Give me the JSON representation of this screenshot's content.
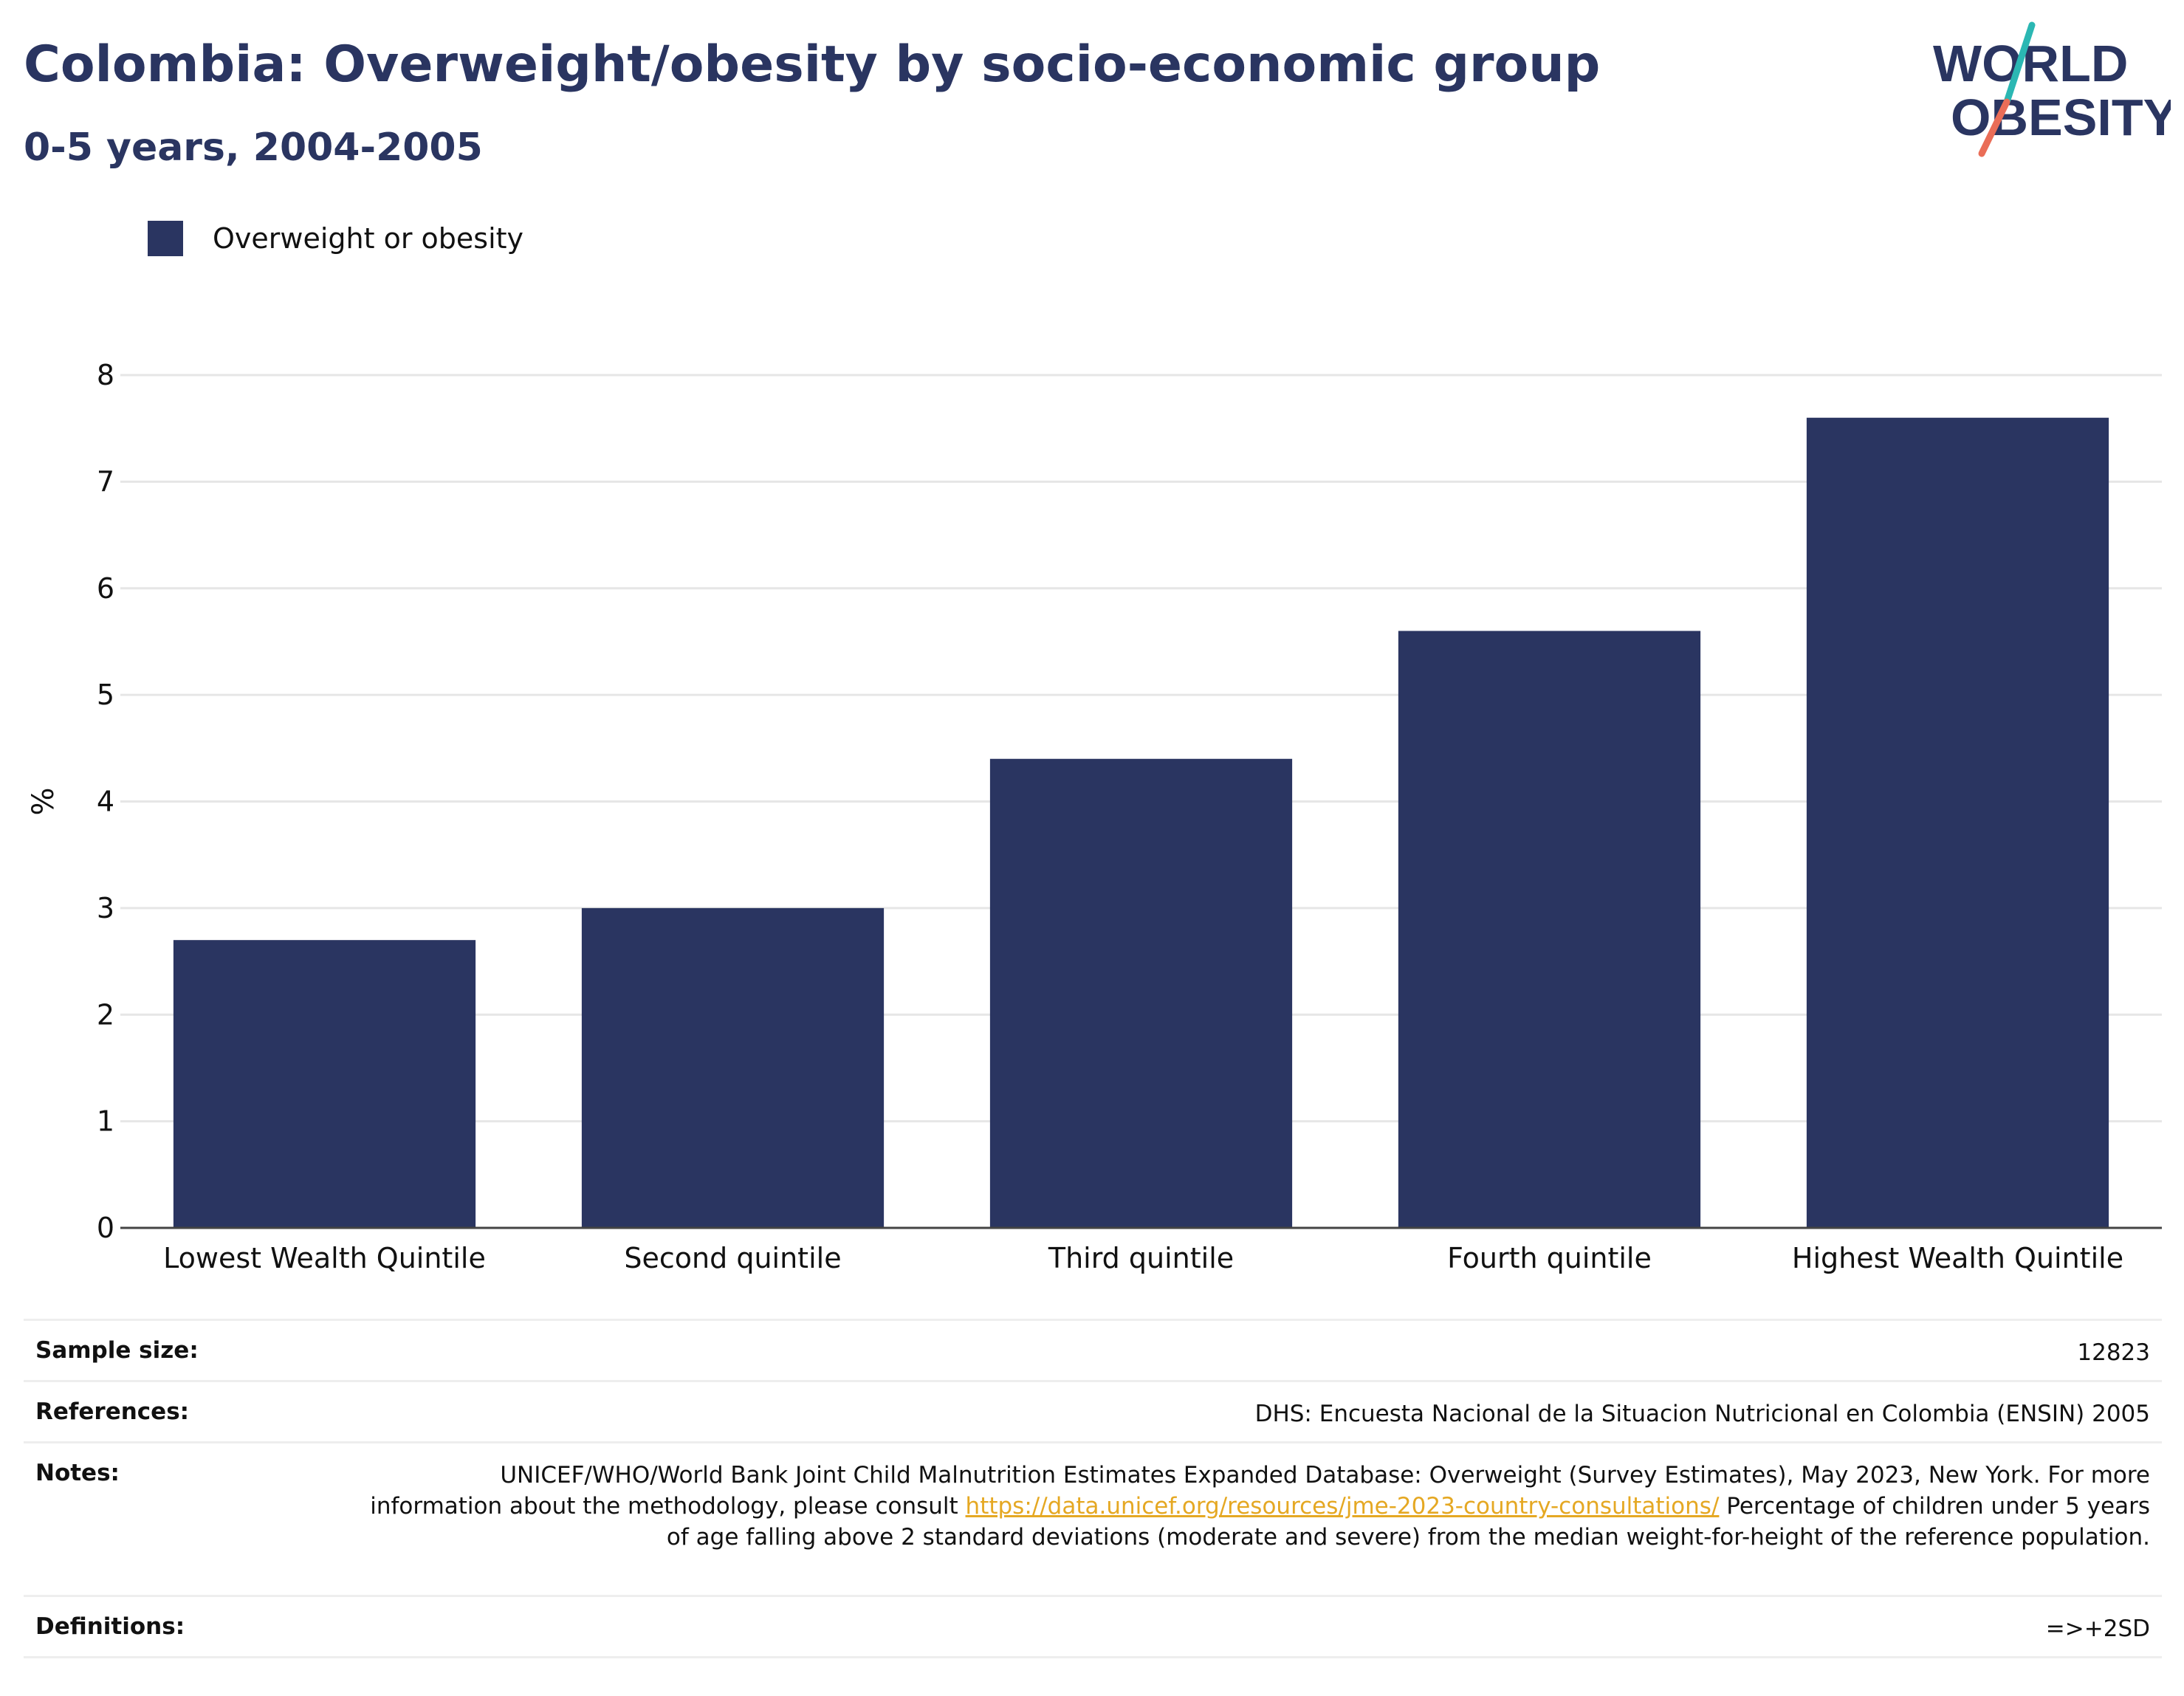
{
  "header": {
    "title": "Colombia: Overweight/obesity by socio-economic group",
    "subtitle": "0-5 years, 2004-2005"
  },
  "logo": {
    "line1": "WORLD",
    "line2": "OBESITY",
    "colors": {
      "text": "#2a3561",
      "slash_top": "#2bb7b3",
      "slash_bottom": "#ea6d57"
    }
  },
  "legend": {
    "label": "Overweight or obesity",
    "color": "#2a3561"
  },
  "chart_data": {
    "type": "bar",
    "categories": [
      "Lowest Wealth Quintile",
      "Second quintile",
      "Third quintile",
      "Fourth quintile",
      "Highest Wealth Quintile"
    ],
    "series": [
      {
        "name": "Overweight or obesity",
        "values": [
          2.7,
          3.0,
          4.4,
          5.6,
          7.6
        ]
      }
    ],
    "title": "Colombia: Overweight/obesity by socio-economic group",
    "subtitle": "0-5 years, 2004-2005",
    "xlabel": "",
    "ylabel": "%",
    "ylim": [
      0,
      8
    ],
    "yticks": [
      "0",
      "1",
      "2",
      "3",
      "4",
      "5",
      "6",
      "7",
      "8"
    ],
    "grid": true,
    "legend_position": "top-left",
    "bar_color": "#2a3561"
  },
  "meta": {
    "sample_size": {
      "label": "Sample size:",
      "value": "12823"
    },
    "references": {
      "label": "References:",
      "value": "DHS: Encuesta Nacional de la Situacion Nutricional en Colombia (ENSIN) 2005"
    },
    "notes": {
      "label": "Notes:",
      "text_before": "UNICEF/WHO/World Bank Joint Child Malnutrition Estimates Expanded Database: Overweight (Survey Estimates), May 2023, New York. For more information about the methodology, please consult ",
      "link": "https://data.unicef.org/resources/jme-2023-country-consultations/",
      "text_after": " Percentage of children under 5 years of age falling above 2 standard deviations (moderate and severe) from the median weight-for-height of the reference population."
    },
    "definitions": {
      "label": "Definitions:",
      "value": "=>+2SD"
    }
  }
}
